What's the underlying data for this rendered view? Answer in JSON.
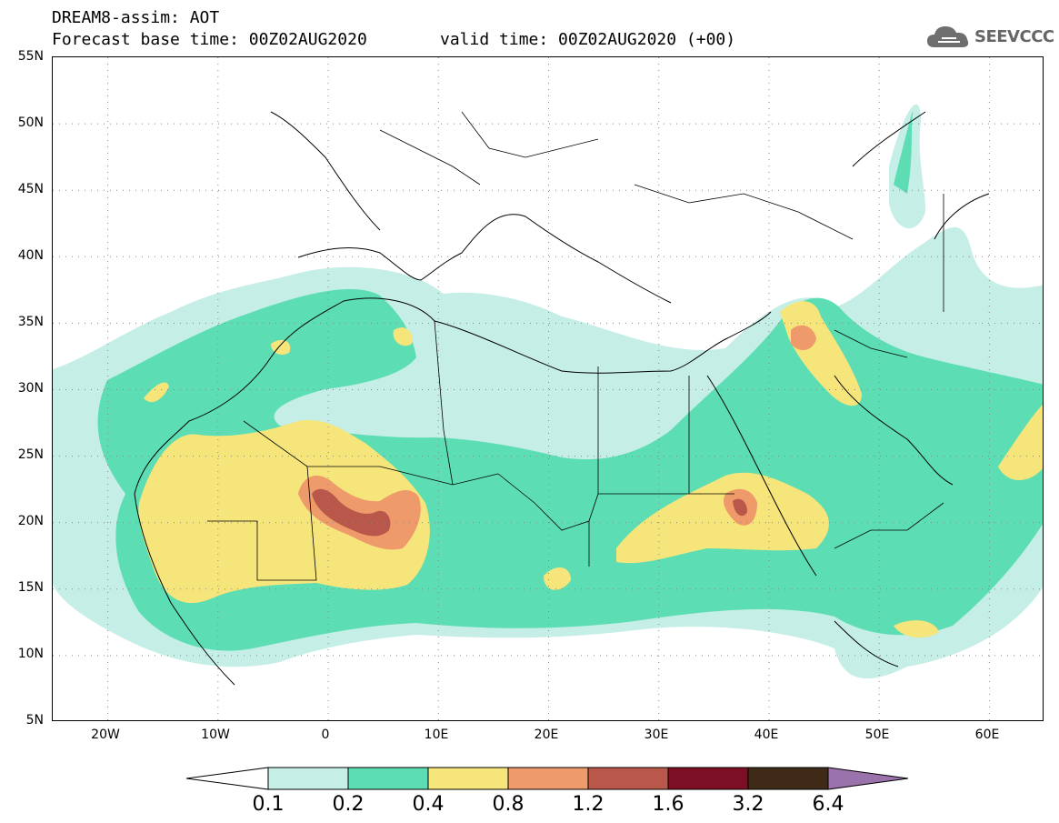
{
  "header": {
    "title": "DREAM8-assim: AOT",
    "base_time": "Forecast base time: 00Z02AUG2020",
    "valid_time": "valid time: 00Z02AUG2020 (+00)",
    "logo_text": "SEEVCCC"
  },
  "map": {
    "variable": "AOT",
    "lon_range": [
      -25,
      65
    ],
    "lat_range": [
      5,
      55
    ],
    "lat_labels": [
      "55N",
      "50N",
      "45N",
      "40N",
      "35N",
      "30N",
      "25N",
      "20N",
      "15N",
      "10N",
      "5N"
    ],
    "lon_labels": [
      "20W",
      "10W",
      "0",
      "10E",
      "20E",
      "30E",
      "40E",
      "50E",
      "60E"
    ],
    "gridlines": "dotted"
  },
  "legend": {
    "levels": [
      "0.1",
      "0.2",
      "0.4",
      "0.8",
      "1.2",
      "1.6",
      "3.2",
      "6.4"
    ],
    "colors": [
      "#ffffff",
      "#c4eee6",
      "#5dddb4",
      "#f6e57a",
      "#ee9a6a",
      "#b9584a",
      "#7d0f24",
      "#3e2a16",
      "#9a72ac"
    ]
  }
}
